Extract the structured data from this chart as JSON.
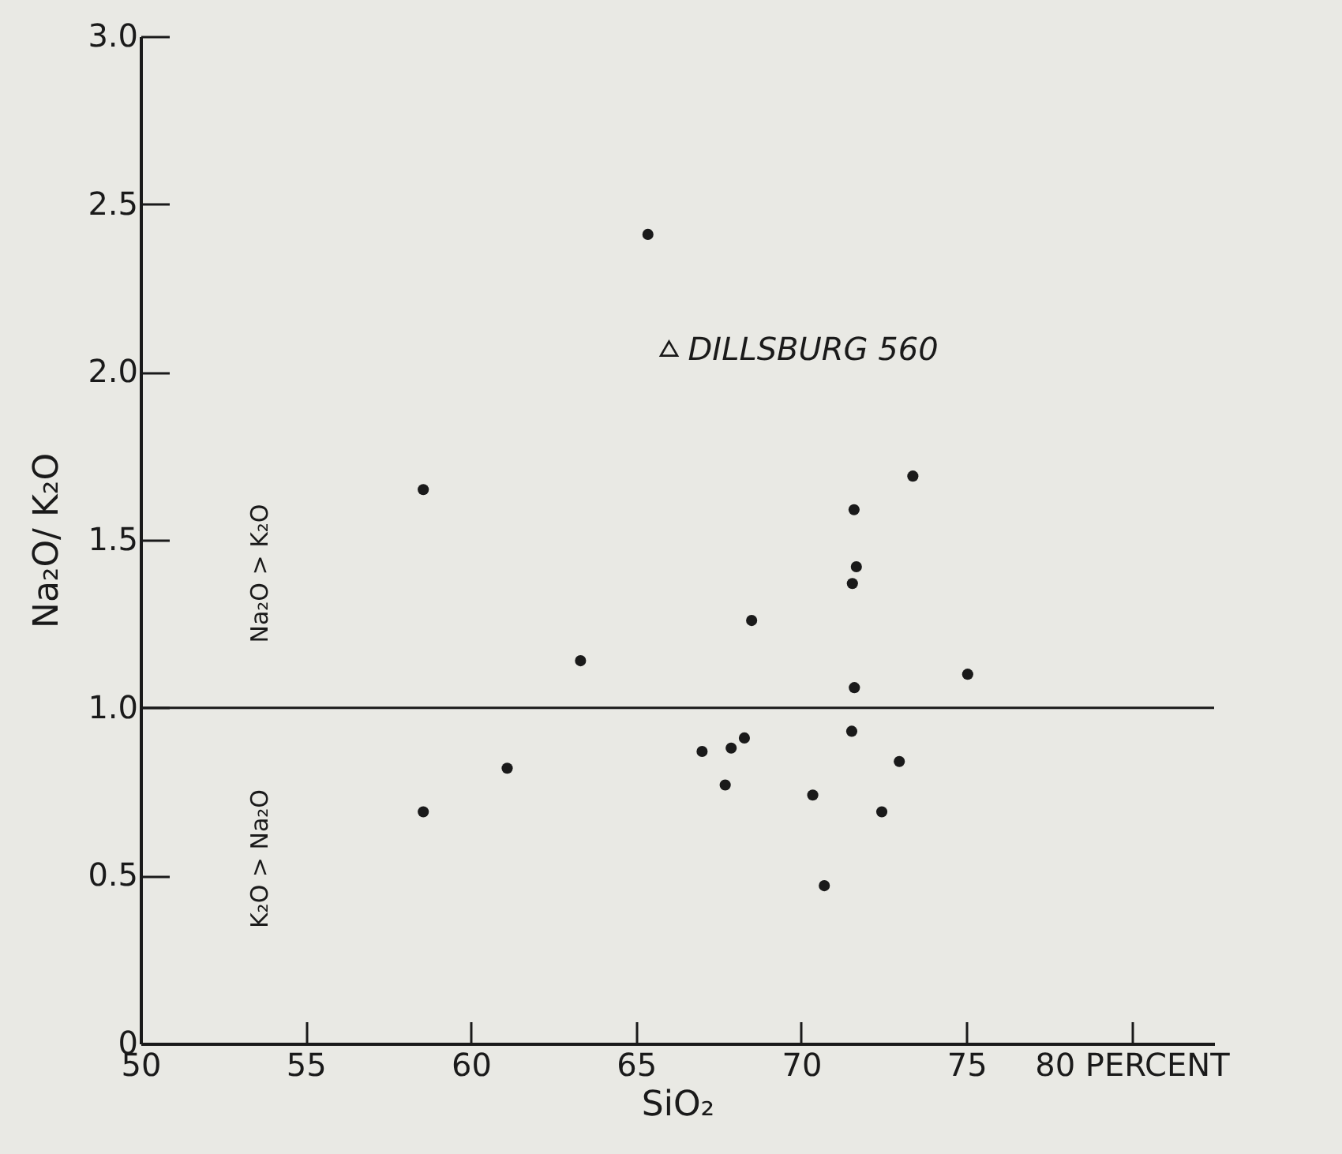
{
  "chart_data": {
    "type": "scatter",
    "xlabel": "SiO₂",
    "ylabel": "Na₂O/ K₂O",
    "xlim": [
      50,
      82.5
    ],
    "ylim": [
      0,
      3.0
    ],
    "xticks": [
      50,
      55,
      60,
      65,
      70,
      75,
      {
        "value": 80,
        "label": "80  PERCENT"
      }
    ],
    "yticks": [
      0,
      0.5,
      {
        "value": 1,
        "label": "1.0"
      },
      1.5,
      {
        "value": 2,
        "label": "2.0"
      },
      2.5,
      {
        "value": 3,
        "label": "3.0"
      }
    ],
    "grid": false,
    "marker": "circle",
    "series": [
      {
        "color": "#1a1a1a",
        "x": [
          65.36,
          73.38,
          71.6,
          71.67,
          71.55,
          68.5,
          63.32,
          75.04,
          71.61,
          71.53,
          68.28,
          67.88,
          67.0,
          72.97,
          61.1,
          67.7,
          70.35,
          72.44,
          70.7,
          58.56,
          58.56
        ],
        "values": [
          2.41,
          1.69,
          1.59,
          1.42,
          1.37,
          1.26,
          1.14,
          1.1,
          1.06,
          0.93,
          0.91,
          0.88,
          0.87,
          0.84,
          0.82,
          0.77,
          0.74,
          0.69,
          0.47,
          1.65,
          0.69
        ]
      },
      {
        "name": "DILLSBURG 560",
        "color": "#1a1a1a",
        "marker": "triangle",
        "x": [
          66.0
        ],
        "values": [
          2.07
        ]
      }
    ],
    "ref_lines": [
      {
        "axis": "y",
        "value": 1.0,
        "color": "#1a1a1a"
      }
    ],
    "annotations": [
      "Na₂O > K₂O",
      "K₂O > Na₂O"
    ]
  }
}
